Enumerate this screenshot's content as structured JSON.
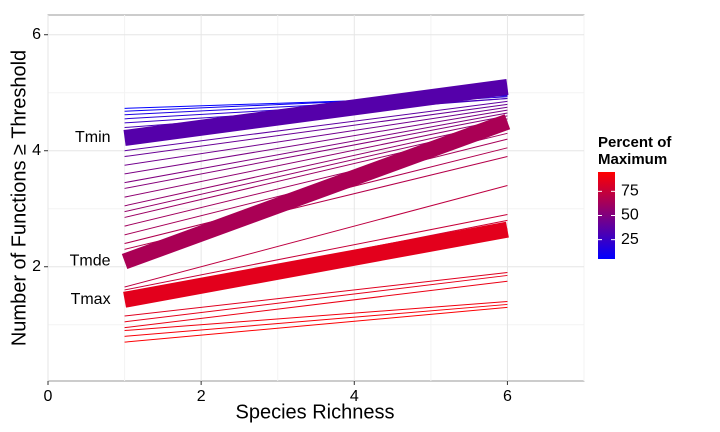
{
  "chart_data": {
    "type": "line",
    "x_label": "Species Richness",
    "y_label": "Number of Functions ≥ Threshold",
    "x": [
      1,
      6
    ],
    "xlim": [
      0,
      7
    ],
    "xticks": [
      0,
      2,
      4,
      6
    ],
    "xminor": [
      1,
      3,
      5,
      7
    ],
    "ylim": [
      0.03,
      6.34
    ],
    "yticks": [
      2,
      4,
      6
    ],
    "yminor": [
      1,
      3,
      5
    ],
    "grid": true,
    "colorscale": {
      "title": [
        "Percent of",
        "Maximum"
      ],
      "low": "#0000ff",
      "high": "#ff0000",
      "lim": [
        5,
        95
      ],
      "ticks": [
        25,
        50,
        75
      ]
    },
    "series": [
      {
        "percent": 5,
        "values": [
          4.73,
          4.95
        ]
      },
      {
        "percent": 10,
        "values": [
          4.68,
          4.97
        ]
      },
      {
        "percent": 15,
        "values": [
          4.62,
          4.95
        ]
      },
      {
        "percent": 20,
        "values": [
          4.55,
          4.93
        ]
      },
      {
        "percent": 25,
        "values": [
          4.48,
          4.9
        ]
      },
      {
        "percent": 30,
        "values": [
          4.4,
          4.9
        ]
      },
      {
        "percent": 38,
        "values": [
          4.0,
          4.85
        ]
      },
      {
        "percent": 42,
        "values": [
          3.9,
          4.8
        ]
      },
      {
        "percent": 45,
        "values": [
          3.75,
          4.75
        ]
      },
      {
        "percent": 48,
        "values": [
          3.6,
          4.7
        ]
      },
      {
        "percent": 50,
        "values": [
          3.45,
          4.65
        ]
      },
      {
        "percent": 52,
        "values": [
          3.35,
          4.6
        ]
      },
      {
        "percent": 55,
        "values": [
          3.2,
          4.55
        ]
      },
      {
        "percent": 57,
        "values": [
          3.05,
          4.5
        ]
      },
      {
        "percent": 58,
        "values": [
          2.95,
          4.45
        ]
      },
      {
        "percent": 60,
        "values": [
          2.85,
          4.4
        ]
      },
      {
        "percent": 62,
        "values": [
          2.7,
          4.3
        ]
      },
      {
        "percent": 64,
        "values": [
          2.55,
          4.2
        ]
      },
      {
        "percent": 67,
        "values": [
          2.4,
          4.05
        ]
      },
      {
        "percent": 69,
        "values": [
          2.3,
          3.9
        ]
      },
      {
        "percent": 72,
        "values": [
          1.65,
          3.4
        ]
      },
      {
        "percent": 75,
        "values": [
          1.6,
          2.9
        ]
      },
      {
        "percent": 78,
        "values": [
          1.5,
          2.8
        ]
      },
      {
        "percent": 80,
        "values": [
          1.45,
          2.65
        ]
      },
      {
        "percent": 84,
        "values": [
          1.15,
          1.9
        ]
      },
      {
        "percent": 86,
        "values": [
          1.05,
          1.85
        ]
      },
      {
        "percent": 88,
        "values": [
          0.95,
          1.75
        ]
      },
      {
        "percent": 90,
        "values": [
          0.9,
          1.4
        ]
      },
      {
        "percent": 92,
        "values": [
          0.8,
          1.35
        ]
      },
      {
        "percent": 94,
        "values": [
          0.7,
          1.3
        ]
      }
    ],
    "highlights": [
      {
        "name": "Tmin",
        "percent": 35,
        "values": [
          4.22,
          5.1
        ]
      },
      {
        "name": "Tmde",
        "percent": 65,
        "values": [
          2.09,
          4.5
        ]
      },
      {
        "name": "Tmax",
        "percent": 85,
        "values": [
          1.43,
          2.64
        ]
      }
    ]
  }
}
